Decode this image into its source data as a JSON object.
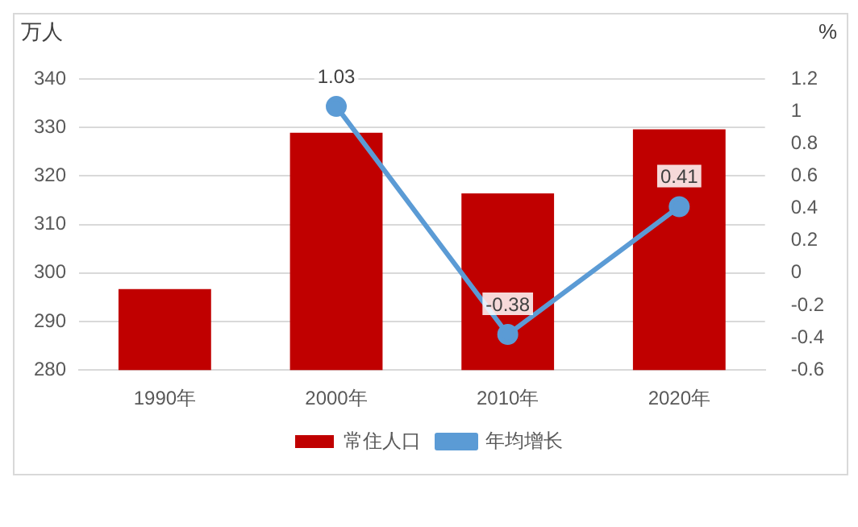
{
  "chart_data": {
    "type": "bar",
    "ylabel": "万人",
    "y2label": "%",
    "categories": [
      "1990年",
      "2000年",
      "2010年",
      "2020年"
    ],
    "series": [
      {
        "name": "常住人口",
        "color": "#c00000",
        "values": [
          296.7,
          328.9,
          316.4,
          329.6
        ]
      },
      {
        "name": "年均增长",
        "type": "line",
        "axis": "y2",
        "color": "#5b9bd5",
        "marker": "circle",
        "values": [
          null,
          1.03,
          -0.38,
          0.41
        ],
        "value_labels": [
          null,
          "1.03",
          "-0.38",
          "0.41"
        ]
      }
    ],
    "ylim": [
      280,
      340
    ],
    "yticks": [
      280,
      290,
      300,
      310,
      320,
      330,
      340
    ],
    "y2lim": [
      -0.6,
      1.2
    ],
    "y2ticks": [
      -0.6,
      -0.4,
      -0.2,
      0,
      0.2,
      0.4,
      0.6,
      0.8,
      1,
      1.2
    ],
    "grid": "y",
    "legend": "bottom"
  }
}
